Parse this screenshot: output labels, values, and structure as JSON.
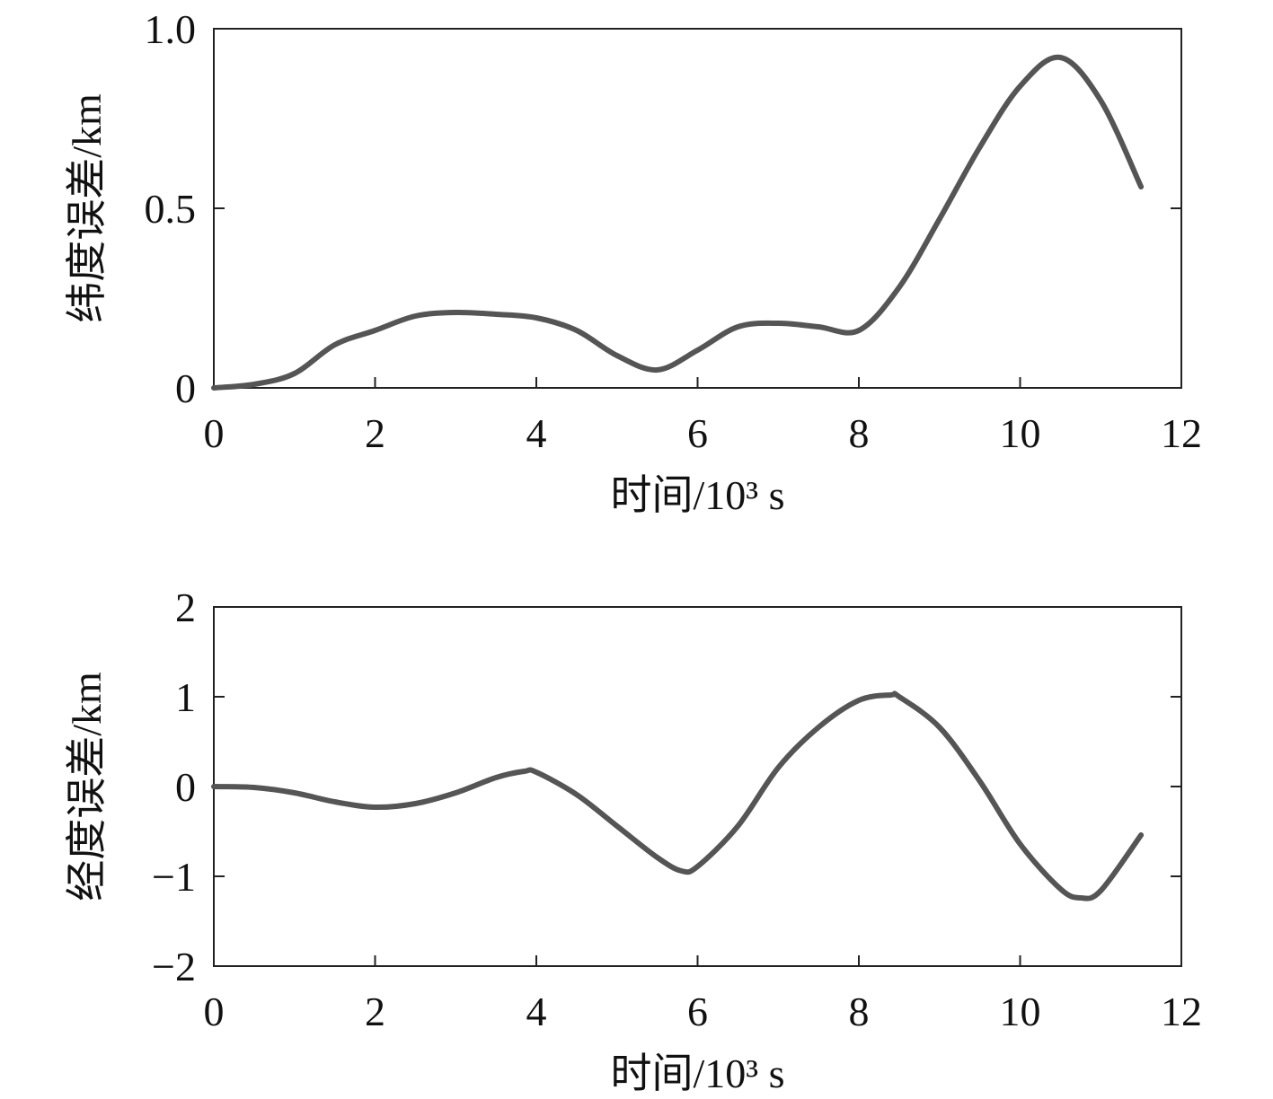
{
  "chart_data": [
    {
      "type": "line",
      "title": "",
      "xlabel": "时间/10³ s",
      "ylabel": "纬度误差/km",
      "xlim": [
        0,
        12
      ],
      "ylim": [
        0,
        1.0
      ],
      "xticks": [
        "0",
        "2",
        "4",
        "6",
        "8",
        "10",
        "12"
      ],
      "yticks": [
        "0",
        "0.5",
        "1.0"
      ],
      "ytick_values": [
        0,
        0.5,
        1.0
      ],
      "grid": false,
      "line_color": "#555555",
      "series": [
        {
          "name": "纬度误差",
          "x": [
            0,
            0.5,
            1,
            1.5,
            2,
            2.5,
            3,
            3.5,
            4,
            4.5,
            5,
            5.5,
            6,
            6.5,
            7,
            7.5,
            8,
            8.5,
            9,
            9.5,
            10,
            10.5,
            11,
            11.5
          ],
          "y": [
            0,
            0.01,
            0.04,
            0.12,
            0.16,
            0.2,
            0.21,
            0.205,
            0.195,
            0.16,
            0.09,
            0.05,
            0.105,
            0.17,
            0.18,
            0.17,
            0.16,
            0.28,
            0.47,
            0.67,
            0.84,
            0.92,
            0.8,
            0.56
          ]
        }
      ]
    },
    {
      "type": "line",
      "title": "",
      "xlabel": "时间/10³ s",
      "ylabel": "经度误差/km",
      "xlim": [
        0,
        12
      ],
      "ylim": [
        -2,
        2
      ],
      "xticks": [
        "0",
        "2",
        "4",
        "6",
        "8",
        "10",
        "12"
      ],
      "yticks": [
        "−2",
        "−1",
        "0",
        "1",
        "2"
      ],
      "ytick_values": [
        -2,
        -1,
        0,
        1,
        2
      ],
      "grid": false,
      "line_color": "#555555",
      "series": [
        {
          "name": "经度误差",
          "x": [
            0,
            0.5,
            1,
            1.5,
            2,
            2.5,
            3,
            3.5,
            3.85,
            4,
            4.5,
            5,
            5.5,
            5.8,
            6,
            6.5,
            7,
            7.5,
            8,
            8.4,
            8.5,
            9,
            9.5,
            10,
            10.5,
            10.75,
            11,
            11.5
          ],
          "y": [
            0,
            -0.01,
            -0.07,
            -0.17,
            -0.23,
            -0.19,
            -0.07,
            0.1,
            0.17,
            0.16,
            -0.09,
            -0.44,
            -0.79,
            -0.94,
            -0.89,
            -0.44,
            0.21,
            0.66,
            0.96,
            1.02,
            1.0,
            0.66,
            0.06,
            -0.64,
            -1.14,
            -1.24,
            -1.16,
            -0.54
          ]
        }
      ]
    }
  ]
}
